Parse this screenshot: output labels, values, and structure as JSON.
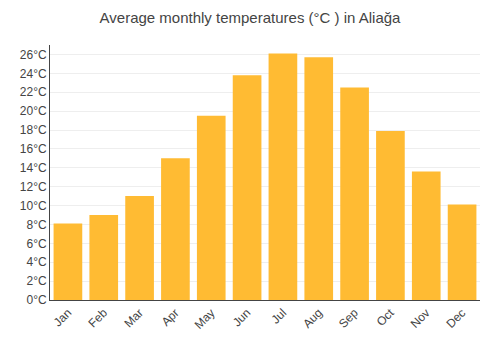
{
  "chart_data": {
    "type": "bar",
    "title": "Average monthly temperatures (°C ) in Aliağa",
    "categories": [
      "Jan",
      "Feb",
      "Mar",
      "Apr",
      "May",
      "Jun",
      "Jul",
      "Aug",
      "Sep",
      "Oct",
      "Nov",
      "Dec"
    ],
    "values": [
      8.1,
      9.0,
      11.0,
      15.0,
      19.5,
      23.8,
      26.1,
      25.7,
      22.5,
      17.9,
      13.6,
      10.1
    ],
    "color": "#FFBB33",
    "ylim": [
      0,
      27
    ],
    "yticks": [
      {
        "value": 0,
        "label": "0°C"
      },
      {
        "value": 2,
        "label": "2°C"
      },
      {
        "value": 4,
        "label": "4°C"
      },
      {
        "value": 6,
        "label": "6°C"
      },
      {
        "value": 8,
        "label": "8°C"
      },
      {
        "value": 10,
        "label": "10°C"
      },
      {
        "value": 12,
        "label": "12°C"
      },
      {
        "value": 14,
        "label": "14°C"
      },
      {
        "value": 16,
        "label": "16°C"
      },
      {
        "value": 18,
        "label": "18°C"
      },
      {
        "value": 20,
        "label": "20°C"
      },
      {
        "value": 22,
        "label": "22°C"
      },
      {
        "value": 24,
        "label": "24°C"
      },
      {
        "value": 26,
        "label": "26°C"
      }
    ],
    "grid": true
  }
}
